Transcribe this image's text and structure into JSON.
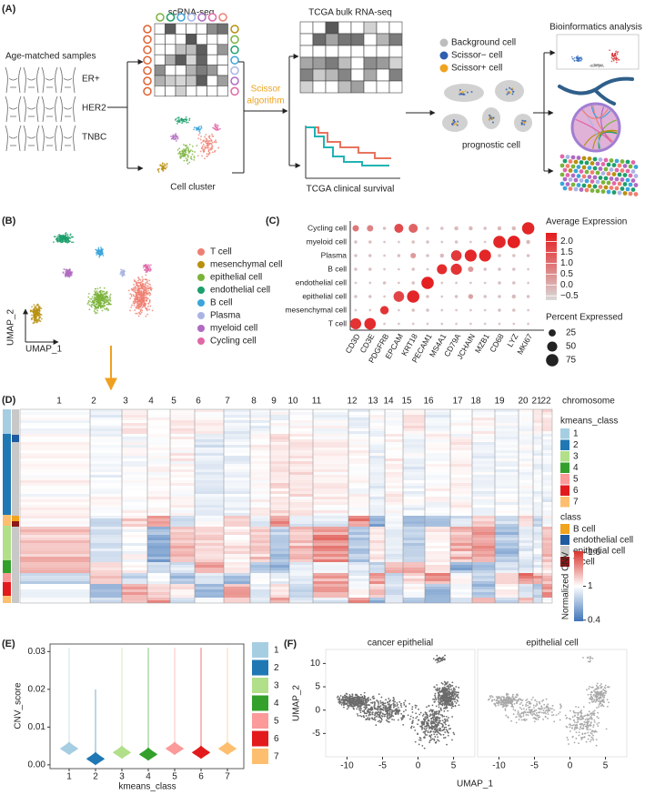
{
  "panel_labels": [
    "(A)",
    "(B)",
    "(C)",
    "(D)",
    "(E)",
    "(F)"
  ],
  "panel_a": {
    "samples_title": "Age-matched samples",
    "subtypes": [
      "ER+",
      "HER2",
      "TNBC"
    ],
    "scrna": "scRNA-seq",
    "cluster": "Cell cluster",
    "algorithm": [
      "Scissor",
      "algorithm"
    ],
    "bulk": "TCGA bulk RNA-seq",
    "survival": "TCGA clinical survival",
    "legend": [
      {
        "name": "Background cell",
        "color": "#bdbdbd"
      },
      {
        "name": "Scissor− cell",
        "color": "#2f5fae"
      },
      {
        "name": "Scissor+ cell",
        "color": "#eea321"
      }
    ],
    "prognostic": "prognostic cell",
    "analysis": "Bioinformatics analysis"
  },
  "panel_b": {
    "legend": [
      {
        "name": "T cell",
        "color": "#ef7f72"
      },
      {
        "name": "mesenchymal cell",
        "color": "#b8900e"
      },
      {
        "name": "epithelial cell",
        "color": "#7bb33a"
      },
      {
        "name": "endothelial cell",
        "color": "#1d9f6c"
      },
      {
        "name": "B cell",
        "color": "#3ba5da"
      },
      {
        "name": "Plasma",
        "color": "#aab4e4"
      },
      {
        "name": "myeloid cell",
        "color": "#b06ac2"
      },
      {
        "name": "Cycling cell",
        "color": "#e067a8"
      }
    ],
    "xlabel": "UMAP_1",
    "ylabel": "UMAP_2"
  },
  "panel_d": {
    "chromosome_title": "chromosome",
    "chromosomes": [
      "1",
      "2",
      "3",
      "4",
      "5",
      "6",
      "7",
      "8",
      "9",
      "10",
      "11",
      "12",
      "13",
      "14",
      "15",
      "16",
      "17",
      "18",
      "19",
      "20",
      "21",
      "22"
    ],
    "kmeans_title": "kmeans_class",
    "kmeans_classes": [
      {
        "name": "1",
        "color": "#a6cee3"
      },
      {
        "name": "2",
        "color": "#1f78b4"
      },
      {
        "name": "3",
        "color": "#b2df8a"
      },
      {
        "name": "4",
        "color": "#33a02c"
      },
      {
        "name": "5",
        "color": "#fb9a99"
      },
      {
        "name": "6",
        "color": "#e31a1c"
      },
      {
        "name": "7",
        "color": "#fdbf6f"
      }
    ],
    "class_title": "class",
    "classes": [
      {
        "name": "B cell",
        "color": "#f2a31f"
      },
      {
        "name": "endothelial cell",
        "color": "#1f5aa0"
      },
      {
        "name": "epithelial cell",
        "color": "#c8c8c8"
      },
      {
        "name": "T cell",
        "color": "#8b1a1a"
      }
    ],
    "cnv_title": "Normalized CNV",
    "cnv_ticks": [
      1.6,
      1,
      0.4
    ],
    "cnv_range": [
      0.38,
      1.62
    ]
  },
  "chart_data": [
    {
      "type": "dot",
      "genes": [
        "CD3D",
        "CD3E",
        "PDGFRB",
        "EPCAM",
        "KRT18",
        "PECAM1",
        "MS4A1",
        "CD79A",
        "JCHAIN",
        "MZB1",
        "CD68",
        "LYZ",
        "MKI67"
      ],
      "rows": [
        {
          "name": "Cycling cell",
          "expression": [
            0.9,
            0.7,
            -0.3,
            1.6,
            1.2,
            -0.3,
            -0.3,
            -0.2,
            -0.2,
            -0.3,
            -0.2,
            -0.2,
            2.2
          ],
          "percent": [
            20,
            20,
            5,
            40,
            40,
            5,
            5,
            8,
            8,
            5,
            8,
            8,
            75
          ]
        },
        {
          "name": "myeloid cell",
          "expression": [
            -0.3,
            -0.3,
            -0.4,
            -0.4,
            -0.3,
            -0.3,
            -0.4,
            -0.3,
            -0.4,
            -0.4,
            2.2,
            2.3,
            -0.2
          ],
          "percent": [
            5,
            5,
            3,
            3,
            5,
            5,
            3,
            5,
            3,
            3,
            75,
            78,
            8
          ]
        },
        {
          "name": "Plasma",
          "expression": [
            -0.3,
            -0.3,
            -0.4,
            -0.3,
            0.3,
            -0.3,
            -0.2,
            1.9,
            2.2,
            2.2,
            -0.3,
            -0.3,
            -0.3
          ],
          "percent": [
            5,
            5,
            3,
            5,
            15,
            5,
            8,
            55,
            70,
            70,
            5,
            5,
            5
          ]
        },
        {
          "name": "B cell",
          "expression": [
            -0.3,
            -0.3,
            -0.4,
            -0.4,
            -0.3,
            -0.4,
            2.1,
            2.0,
            0.3,
            -0.3,
            -0.3,
            -0.3,
            -0.4
          ],
          "percent": [
            5,
            5,
            3,
            3,
            5,
            3,
            50,
            60,
            15,
            5,
            5,
            5,
            3
          ]
        },
        {
          "name": "endothelial cell",
          "expression": [
            -0.4,
            -0.4,
            -0.3,
            -0.4,
            -0.3,
            2.3,
            -0.4,
            -0.4,
            -0.4,
            -0.4,
            -0.3,
            -0.3,
            -0.4
          ],
          "percent": [
            3,
            3,
            5,
            3,
            5,
            75,
            3,
            3,
            3,
            3,
            5,
            5,
            3
          ]
        },
        {
          "name": "epithelial cell",
          "expression": [
            -0.3,
            -0.3,
            -0.4,
            1.7,
            2.2,
            -0.3,
            -0.4,
            -0.3,
            0.2,
            -0.3,
            -0.3,
            -0.2,
            -0.3
          ],
          "percent": [
            5,
            5,
            3,
            55,
            75,
            5,
            3,
            5,
            12,
            5,
            5,
            8,
            5
          ]
        },
        {
          "name": "mesenchymal cell",
          "expression": [
            -0.4,
            -0.4,
            2.0,
            -0.4,
            -0.3,
            -0.3,
            -0.4,
            -0.4,
            -0.4,
            -0.4,
            -0.3,
            -0.3,
            -0.4
          ],
          "percent": [
            3,
            3,
            35,
            3,
            5,
            5,
            3,
            3,
            3,
            3,
            5,
            5,
            3
          ]
        },
        {
          "name": "T cell",
          "expression": [
            2.0,
            2.1,
            -0.4,
            -0.4,
            -0.4,
            -0.4,
            -0.4,
            -0.4,
            -0.4,
            -0.4,
            -0.4,
            -0.4,
            -0.4
          ],
          "percent": [
            60,
            65,
            3,
            3,
            3,
            3,
            3,
            3,
            3,
            3,
            3,
            3,
            3
          ]
        }
      ],
      "color_title": "Average Expression",
      "clim": [
        -0.7,
        2.4
      ],
      "cticks": [
        {
          "value": 2.0,
          "label": "2.0"
        },
        {
          "value": 1.5,
          "label": "1.5"
        },
        {
          "value": 1.0,
          "label": "1.0"
        },
        {
          "value": 0.5,
          "label": "0.5"
        },
        {
          "value": 0.0,
          "label": "0.0"
        },
        {
          "value": -0.5,
          "label": "−0.5"
        }
      ],
      "colors": [
        "#d9d9d9",
        "#e41a1c"
      ],
      "size_title": "Percent Expressed",
      "size_ticks": [
        25,
        50,
        75
      ]
    },
    {
      "type": "violin",
      "categories": [
        "1",
        "2",
        "3",
        "4",
        "5",
        "6",
        "7"
      ],
      "colors": [
        "#a6cee3",
        "#1f78b4",
        "#b2df8a",
        "#33a02c",
        "#fb9a99",
        "#e31a1c",
        "#fdbf6f"
      ],
      "values": [
        0.0045,
        0.0018,
        0.0035,
        0.003,
        0.0045,
        0.0035,
        0.0045
      ],
      "max": [
        0.031,
        0.02,
        0.031,
        0.031,
        0.031,
        0.031,
        0.031
      ],
      "ylim": [
        -0.001,
        0.032
      ],
      "yticks": [
        {
          "value": 0,
          "label": "0.00"
        },
        {
          "value": 0.01,
          "label": "0.01"
        },
        {
          "value": 0.02,
          "label": "0.02"
        },
        {
          "value": 0.03,
          "label": "0.03"
        }
      ],
      "xlabel": "kmeans_class",
      "ylabel": "CNV_score"
    },
    {
      "type": "umap",
      "facets": [
        {
          "name": "cancer epithelial",
          "color": "#6b6b6b"
        },
        {
          "name": "epithelial cell",
          "color": "#a9a9a9"
        }
      ],
      "xlim": [
        -13,
        8
      ],
      "ylim": [
        -10,
        13
      ],
      "xticks": [
        -10,
        -5,
        0,
        5
      ],
      "yticks": [
        -5,
        0,
        5,
        10
      ],
      "xlabel": "UMAP_1",
      "ylabel": "UMAP_2"
    }
  ]
}
